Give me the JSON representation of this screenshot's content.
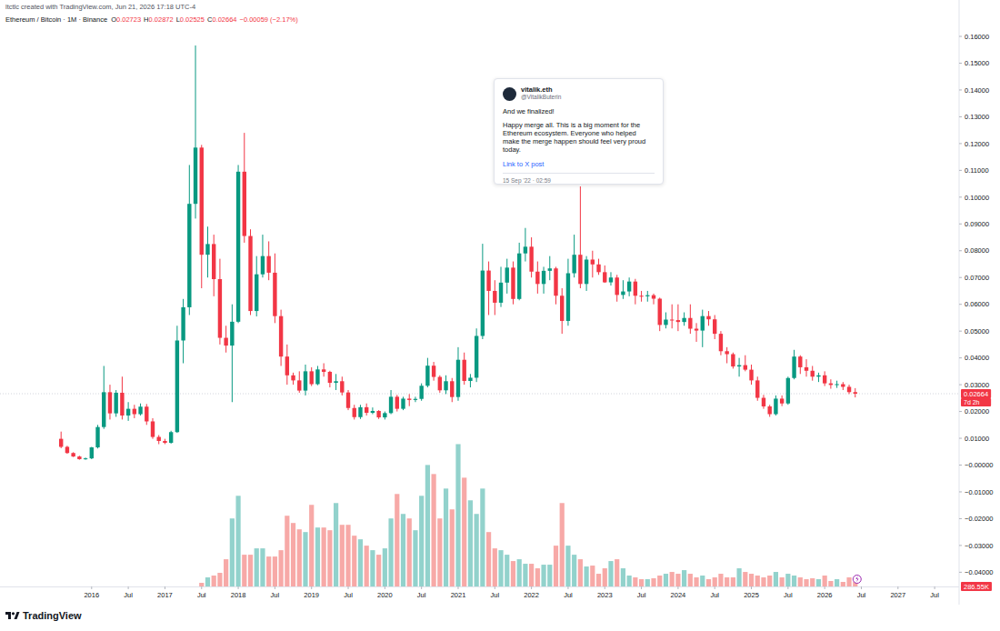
{
  "chart_data": {
    "type": "candlestick",
    "subtitle": "ltctlc created with TradingView.com, Jun 21, 2026 17:18 UTC-4",
    "title": "Ethereum / Bitcoin · 1M · Binance",
    "readout": [
      {
        "label": "O",
        "text": "0.02723"
      },
      {
        "label": "H",
        "text": "0.02872"
      },
      {
        "label": "L",
        "text": "0.02525"
      },
      {
        "label": "C",
        "text": "0.02664"
      },
      {
        "label": "",
        "text": "−0.00059 (−2.17%)"
      }
    ],
    "x": [
      "2015-08",
      "2015-09",
      "2015-10",
      "2015-11",
      "2015-12",
      "2016-01",
      "2016-02",
      "2016-03",
      "2016-04",
      "2016-05",
      "2016-06",
      "2016-07",
      "2016-08",
      "2016-09",
      "2016-10",
      "2016-11",
      "2016-12",
      "2017-01",
      "2017-02",
      "2017-03",
      "2017-04",
      "2017-05",
      "2017-06",
      "2017-07",
      "2017-08",
      "2017-09",
      "2017-10",
      "2017-11",
      "2017-12",
      "2018-01",
      "2018-02",
      "2018-03",
      "2018-04",
      "2018-05",
      "2018-06",
      "2018-07",
      "2018-08",
      "2018-09",
      "2018-10",
      "2018-11",
      "2018-12",
      "2019-01",
      "2019-02",
      "2019-03",
      "2019-04",
      "2019-05",
      "2019-06",
      "2019-07",
      "2019-08",
      "2019-09",
      "2019-10",
      "2019-11",
      "2019-12",
      "2020-01",
      "2020-02",
      "2020-03",
      "2020-04",
      "2020-05",
      "2020-06",
      "2020-07",
      "2020-08",
      "2020-09",
      "2020-10",
      "2020-11",
      "2020-12",
      "2021-01",
      "2021-02",
      "2021-03",
      "2021-04",
      "2021-05",
      "2021-06",
      "2021-07",
      "2021-08",
      "2021-09",
      "2021-10",
      "2021-11",
      "2021-12",
      "2022-01",
      "2022-02",
      "2022-03",
      "2022-04",
      "2022-05",
      "2022-06",
      "2022-07",
      "2022-08",
      "2022-09",
      "2022-10",
      "2022-11",
      "2022-12",
      "2023-01",
      "2023-02",
      "2023-03",
      "2023-04",
      "2023-05",
      "2023-06",
      "2023-07",
      "2023-08",
      "2023-09",
      "2023-10",
      "2023-11",
      "2023-12",
      "2024-01",
      "2024-02",
      "2024-03",
      "2024-04",
      "2024-05",
      "2024-06",
      "2024-07",
      "2024-08",
      "2024-09",
      "2024-10",
      "2024-11",
      "2024-12",
      "2025-01",
      "2025-02",
      "2025-03",
      "2025-04",
      "2025-05",
      "2025-06",
      "2025-07",
      "2025-08",
      "2025-09",
      "2025-10",
      "2025-11",
      "2025-12",
      "2026-01",
      "2026-02",
      "2026-03",
      "2026-04",
      "2026-05",
      "2026-06"
    ],
    "open": [
      0.0098,
      0.0068,
      0.0045,
      0.0032,
      0.0022,
      0.0025,
      0.0066,
      0.0142,
      0.0272,
      0.0193,
      0.027,
      0.0185,
      0.021,
      0.019,
      0.0218,
      0.0163,
      0.0105,
      0.009,
      0.0083,
      0.0123,
      0.0465,
      0.0589,
      0.0975,
      0.1185,
      0.0785,
      0.0825,
      0.0694,
      0.0475,
      0.0446,
      0.0535,
      0.1095,
      0.0855,
      0.0575,
      0.0712,
      0.078,
      0.0718,
      0.0556,
      0.0405,
      0.0335,
      0.0316,
      0.0278,
      0.035,
      0.0302,
      0.0357,
      0.0348,
      0.0307,
      0.0313,
      0.0271,
      0.0213,
      0.0179,
      0.0216,
      0.0195,
      0.0202,
      0.0178,
      0.0194,
      0.0255,
      0.021,
      0.0248,
      0.0243,
      0.0247,
      0.0296,
      0.0371,
      0.0329,
      0.0279,
      0.0313,
      0.0254,
      0.0393,
      0.0314,
      0.0326,
      0.0482,
      0.0726,
      0.065,
      0.0606,
      0.0681,
      0.0737,
      0.062,
      0.079,
      0.0815,
      0.0722,
      0.0676,
      0.0725,
      0.0734,
      0.0632,
      0.0538,
      0.0716,
      0.0785,
      0.0676,
      0.0767,
      0.0749,
      0.072,
      0.0682,
      0.07,
      0.0635,
      0.0648,
      0.0685,
      0.0632,
      0.063,
      0.0634,
      0.0621,
      0.0523,
      0.0543,
      0.0541,
      0.0534,
      0.0549,
      0.0509,
      0.0502,
      0.0556,
      0.0544,
      0.049,
      0.0425,
      0.0414,
      0.0368,
      0.0373,
      0.0356,
      0.0316,
      0.0251,
      0.0219,
      0.019,
      0.0248,
      0.023,
      0.0325,
      0.0405,
      0.0365,
      0.0352,
      0.033,
      0.0335,
      0.0305,
      0.0299,
      0.0302,
      0.0292,
      0.02723
    ],
    "high": [
      0.0125,
      0.0072,
      0.0048,
      0.0035,
      0.0028,
      0.0068,
      0.015,
      0.037,
      0.03,
      0.028,
      0.033,
      0.0235,
      0.0225,
      0.023,
      0.0228,
      0.0175,
      0.0112,
      0.0098,
      0.0128,
      0.052,
      0.062,
      0.112,
      0.1566,
      0.1195,
      0.089,
      0.086,
      0.077,
      0.052,
      0.06,
      0.112,
      0.124,
      0.088,
      0.078,
      0.086,
      0.0835,
      0.079,
      0.058,
      0.045,
      0.0345,
      0.035,
      0.0375,
      0.0365,
      0.037,
      0.038,
      0.0352,
      0.034,
      0.033,
      0.028,
      0.0225,
      0.0225,
      0.023,
      0.0215,
      0.0205,
      0.02,
      0.028,
      0.0262,
      0.0255,
      0.0265,
      0.0255,
      0.0305,
      0.04,
      0.0385,
      0.0335,
      0.0335,
      0.0325,
      0.044,
      0.042,
      0.034,
      0.051,
      0.0826,
      0.076,
      0.069,
      0.074,
      0.077,
      0.076,
      0.083,
      0.0885,
      0.085,
      0.076,
      0.074,
      0.078,
      0.074,
      0.066,
      0.077,
      0.086,
      0.104,
      0.078,
      0.08,
      0.077,
      0.0745,
      0.072,
      0.071,
      0.069,
      0.07,
      0.0695,
      0.065,
      0.065,
      0.064,
      0.0625,
      0.057,
      0.06,
      0.06,
      0.057,
      0.06,
      0.053,
      0.058,
      0.0575,
      0.056,
      0.05,
      0.044,
      0.042,
      0.04,
      0.041,
      0.0375,
      0.033,
      0.0262,
      0.0225,
      0.026,
      0.026,
      0.033,
      0.043,
      0.041,
      0.0395,
      0.037,
      0.0345,
      0.035,
      0.032,
      0.0315,
      0.031,
      0.03,
      0.02872
    ],
    "low": [
      0.0063,
      0.0042,
      0.003,
      0.002,
      0.002,
      0.0022,
      0.0062,
      0.0135,
      0.017,
      0.018,
      0.017,
      0.0165,
      0.0175,
      0.0185,
      0.015,
      0.0098,
      0.0078,
      0.0078,
      0.008,
      0.012,
      0.038,
      0.056,
      0.092,
      0.066,
      0.07,
      0.063,
      0.045,
      0.042,
      0.0235,
      0.053,
      0.083,
      0.056,
      0.0555,
      0.07,
      0.069,
      0.053,
      0.037,
      0.03,
      0.03,
      0.027,
      0.026,
      0.0295,
      0.0298,
      0.033,
      0.029,
      0.028,
      0.026,
      0.0205,
      0.017,
      0.0172,
      0.0185,
      0.019,
      0.0172,
      0.017,
      0.019,
      0.02,
      0.0205,
      0.022,
      0.0235,
      0.024,
      0.029,
      0.0315,
      0.027,
      0.0265,
      0.0235,
      0.024,
      0.03,
      0.029,
      0.031,
      0.047,
      0.056,
      0.056,
      0.059,
      0.064,
      0.06,
      0.0615,
      0.076,
      0.07,
      0.064,
      0.064,
      0.069,
      0.06,
      0.049,
      0.052,
      0.07,
      0.066,
      0.065,
      0.07,
      0.071,
      0.068,
      0.067,
      0.061,
      0.062,
      0.063,
      0.06,
      0.061,
      0.061,
      0.06,
      0.05,
      0.051,
      0.051,
      0.05,
      0.052,
      0.049,
      0.046,
      0.044,
      0.052,
      0.047,
      0.041,
      0.038,
      0.036,
      0.033,
      0.035,
      0.03,
      0.024,
      0.021,
      0.018,
      0.0185,
      0.022,
      0.0225,
      0.032,
      0.034,
      0.033,
      0.0315,
      0.031,
      0.0295,
      0.0285,
      0.0288,
      0.028,
      0.0265,
      0.02525
    ],
    "close": [
      0.0068,
      0.0045,
      0.0032,
      0.0022,
      0.0025,
      0.0066,
      0.0142,
      0.0272,
      0.0193,
      0.027,
      0.0185,
      0.021,
      0.019,
      0.0218,
      0.0163,
      0.0105,
      0.009,
      0.0083,
      0.0123,
      0.0465,
      0.0589,
      0.0975,
      0.1185,
      0.0785,
      0.0825,
      0.0694,
      0.0475,
      0.0446,
      0.0535,
      0.1095,
      0.0855,
      0.0575,
      0.0712,
      0.078,
      0.0718,
      0.0556,
      0.0405,
      0.0335,
      0.0316,
      0.0278,
      0.035,
      0.0302,
      0.0357,
      0.0348,
      0.0307,
      0.0313,
      0.0271,
      0.0213,
      0.0179,
      0.0216,
      0.0195,
      0.0202,
      0.0178,
      0.0194,
      0.0255,
      0.021,
      0.0248,
      0.0243,
      0.0247,
      0.0296,
      0.0371,
      0.0329,
      0.0279,
      0.0313,
      0.0254,
      0.0393,
      0.0314,
      0.0326,
      0.0482,
      0.0726,
      0.065,
      0.0606,
      0.0681,
      0.0737,
      0.062,
      0.079,
      0.0815,
      0.0722,
      0.0676,
      0.0725,
      0.0734,
      0.0632,
      0.0538,
      0.0716,
      0.0785,
      0.0676,
      0.0767,
      0.0749,
      0.072,
      0.0682,
      0.07,
      0.0635,
      0.0648,
      0.0685,
      0.0632,
      0.063,
      0.0634,
      0.0621,
      0.0523,
      0.0543,
      0.0541,
      0.0534,
      0.0549,
      0.0509,
      0.0502,
      0.0556,
      0.0544,
      0.049,
      0.0425,
      0.0414,
      0.0368,
      0.0373,
      0.0356,
      0.0316,
      0.0251,
      0.0219,
      0.019,
      0.0248,
      0.023,
      0.0325,
      0.0405,
      0.0365,
      0.0352,
      0.033,
      0.0335,
      0.0305,
      0.0299,
      0.0302,
      0.0292,
      0.02723,
      0.02664
    ],
    "volume": [
      0,
      0,
      0,
      0,
      0,
      0,
      0,
      0,
      0,
      0,
      0,
      0,
      0,
      0,
      0,
      0,
      0,
      0,
      0,
      0,
      0,
      0,
      0,
      229000,
      573000,
      688000,
      860000,
      1719000,
      4298000,
      5730000,
      2006000,
      2006000,
      2407000,
      2407000,
      1891000,
      1891000,
      2292000,
      4469000,
      4011000,
      3610000,
      3438000,
      5157000,
      3725000,
      3725000,
      3553000,
      5272000,
      3896000,
      3896000,
      3209000,
      2980000,
      2579000,
      2292000,
      2006000,
      2407000,
      4298000,
      5845000,
      4584000,
      4298000,
      3553000,
      5730000,
      7678000,
      7105000,
      4298000,
      6188000,
      4871000,
      8996000,
      6876000,
      5444000,
      4584000,
      6188000,
      3438000,
      2407000,
      2292000,
      2006000,
      1604000,
      1719000,
      1433000,
      1433000,
      1146000,
      1375000,
      1375000,
      2579000,
      5272000,
      2579000,
      2006000,
      1719000,
      1261000,
      1318000,
      802000,
      1146000,
      1604000,
      1719000,
      1146000,
      688000,
      573000,
      458000,
      458000,
      516000,
      688000,
      802000,
      917000,
      802000,
      1031000,
      802000,
      573000,
      688000,
      458000,
      573000,
      802000,
      573000,
      573000,
      1146000,
      917000,
      802000,
      688000,
      573000,
      688000,
      917000,
      573000,
      802000,
      688000,
      573000,
      458000,
      516000,
      458000,
      688000,
      344000,
      458000,
      286550,
      573000,
      286550
    ],
    "xlim": [
      "2014-10",
      "2027-11"
    ],
    "xticks": [
      {
        "value": "2016-01",
        "label": "2016"
      },
      {
        "value": "2016-07",
        "label": "Jul"
      },
      {
        "value": "2017-01",
        "label": "2017"
      },
      {
        "value": "2017-07",
        "label": "Jul"
      },
      {
        "value": "2018-01",
        "label": "2018"
      },
      {
        "value": "2018-07",
        "label": "Jul"
      },
      {
        "value": "2019-01",
        "label": "2019"
      },
      {
        "value": "2019-07",
        "label": "Jul"
      },
      {
        "value": "2020-01",
        "label": "2020"
      },
      {
        "value": "2020-07",
        "label": "Jul"
      },
      {
        "value": "2021-01",
        "label": "2021"
      },
      {
        "value": "2021-07",
        "label": "Jul"
      },
      {
        "value": "2022-01",
        "label": "2022"
      },
      {
        "value": "2022-07",
        "label": "Jul"
      },
      {
        "value": "2023-01",
        "label": "2023"
      },
      {
        "value": "2023-07",
        "label": "Jul"
      },
      {
        "value": "2024-01",
        "label": "2024"
      },
      {
        "value": "2024-07",
        "label": "Jul"
      },
      {
        "value": "2025-01",
        "label": "2025"
      },
      {
        "value": "2025-07",
        "label": "Jul"
      },
      {
        "value": "2026-01",
        "label": "2026"
      },
      {
        "value": "2026-07",
        "label": "Jul"
      },
      {
        "value": "2027-01",
        "label": "2027"
      },
      {
        "value": "2027-07",
        "label": "Jul"
      }
    ],
    "ylim": [
      -0.0453,
      0.1634
    ],
    "yticks": [
      {
        "value": 0.16,
        "label": "0.16000"
      },
      {
        "value": 0.15,
        "label": "0.15000"
      },
      {
        "value": 0.14,
        "label": "0.14000"
      },
      {
        "value": 0.13,
        "label": "0.13000"
      },
      {
        "value": 0.12,
        "label": "0.12000"
      },
      {
        "value": 0.11,
        "label": "0.11000"
      },
      {
        "value": 0.1,
        "label": "0.10000"
      },
      {
        "value": 0.09,
        "label": "0.09000"
      },
      {
        "value": 0.08,
        "label": "0.08000"
      },
      {
        "value": 0.07,
        "label": "0.07000"
      },
      {
        "value": 0.06,
        "label": "0.06000"
      },
      {
        "value": 0.05,
        "label": "0.05000"
      },
      {
        "value": 0.04,
        "label": "0.04000"
      },
      {
        "value": 0.03,
        "label": "0.03000"
      },
      {
        "value": 0.02,
        "label": "0.02000"
      },
      {
        "value": 0.01,
        "label": "0.01000"
      },
      {
        "value": 0,
        "label": "−0.00000"
      },
      {
        "value": -0.01,
        "label": "−0.01000"
      },
      {
        "value": -0.02,
        "label": "−0.02000"
      },
      {
        "value": -0.03,
        "label": "−0.03000"
      },
      {
        "value": -0.04,
        "label": "−0.04000"
      }
    ],
    "volume_lim": [
      0,
      10000000
    ],
    "grid": false,
    "last_price_label": "0.02664",
    "countdown": "7d 2h",
    "volume_label": "286.55K",
    "annotation": {
      "author": "vitalik.eth",
      "handle": "@VitalikButerin",
      "lead": "And we finalized!",
      "body": "Happy merge all. This is a big moment for the Ethereum ecosystem. Everyone who helped make the merge happen should feel very proud today.",
      "link": "Link to X post",
      "date": "15 Sep '22 · 02:59"
    },
    "brand": "TradingView"
  }
}
